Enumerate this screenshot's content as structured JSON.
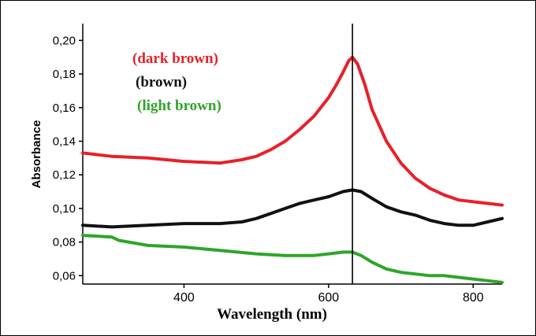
{
  "chart_data": {
    "type": "line",
    "xlabel": "Wavelength (nm)",
    "ylabel": "Absorbance",
    "xlim": [
      260,
      840
    ],
    "ylim": [
      0.055,
      0.21
    ],
    "x_ticks": [
      400,
      600,
      800
    ],
    "x_tick_labels": [
      "400",
      "600",
      "800"
    ],
    "y_ticks": [
      0.06,
      0.08,
      0.1,
      0.12,
      0.14,
      0.16,
      0.18,
      0.2
    ],
    "y_tick_labels": [
      "0,06",
      "0,08",
      "0,10",
      "0,12",
      "0,14",
      "0,16",
      "0,18",
      "0,20"
    ],
    "vertical_marker_x": 633,
    "grid": false,
    "legend_placement": "top-left",
    "series": [
      {
        "name": "(dark brown)",
        "color": "#e8202a",
        "x": [
          260,
          300,
          350,
          400,
          450,
          480,
          500,
          520,
          540,
          560,
          580,
          600,
          610,
          620,
          628,
          633,
          640,
          650,
          660,
          680,
          700,
          720,
          740,
          760,
          780,
          800,
          820,
          840
        ],
        "y": [
          0.133,
          0.131,
          0.13,
          0.128,
          0.127,
          0.129,
          0.131,
          0.135,
          0.14,
          0.147,
          0.155,
          0.166,
          0.173,
          0.181,
          0.188,
          0.19,
          0.186,
          0.174,
          0.159,
          0.14,
          0.127,
          0.118,
          0.112,
          0.108,
          0.105,
          0.104,
          0.103,
          0.102
        ]
      },
      {
        "name": "(brown)",
        "color": "#111111",
        "x": [
          260,
          300,
          350,
          400,
          450,
          480,
          500,
          520,
          540,
          560,
          580,
          600,
          620,
          633,
          645,
          660,
          680,
          700,
          720,
          740,
          760,
          780,
          800,
          820,
          840
        ],
        "y": [
          0.09,
          0.089,
          0.09,
          0.091,
          0.091,
          0.092,
          0.094,
          0.097,
          0.1,
          0.103,
          0.105,
          0.107,
          0.11,
          0.111,
          0.11,
          0.106,
          0.101,
          0.098,
          0.096,
          0.093,
          0.091,
          0.09,
          0.09,
          0.092,
          0.094
        ]
      },
      {
        "name": "(light brown)",
        "color": "#2ea52a",
        "x": [
          260,
          300,
          310,
          350,
          400,
          450,
          500,
          540,
          560,
          580,
          600,
          620,
          633,
          645,
          660,
          680,
          700,
          720,
          740,
          760,
          780,
          800,
          820,
          840
        ],
        "y": [
          0.084,
          0.083,
          0.081,
          0.078,
          0.077,
          0.075,
          0.073,
          0.072,
          0.072,
          0.072,
          0.073,
          0.074,
          0.074,
          0.072,
          0.068,
          0.064,
          0.062,
          0.061,
          0.06,
          0.06,
          0.059,
          0.058,
          0.057,
          0.056
        ]
      }
    ]
  }
}
